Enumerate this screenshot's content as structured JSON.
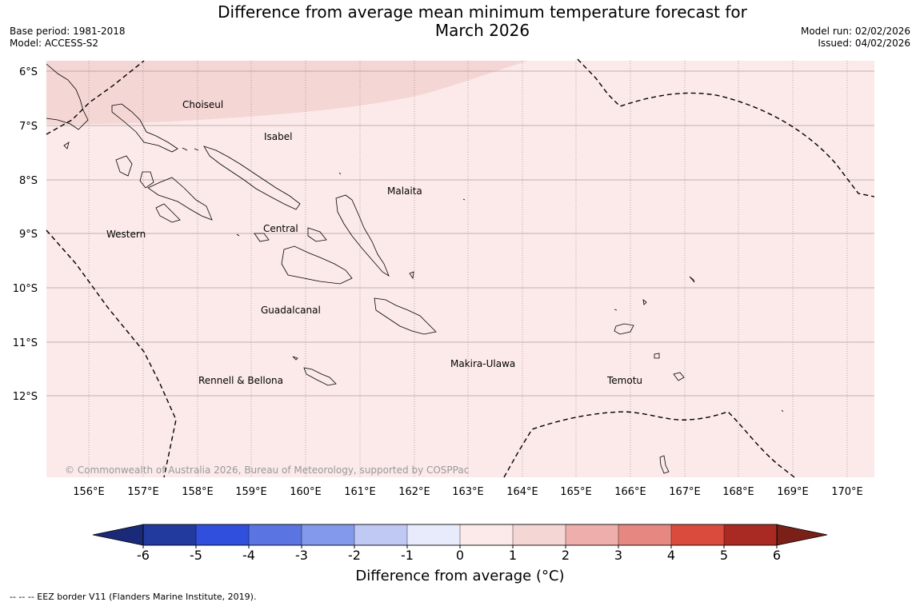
{
  "header": {
    "title_line1": "Difference from average mean minimum temperature forecast for",
    "title_line2": "March 2026",
    "base_period": "Base period: 1981-2018",
    "model": "Model: ACCESS-S2",
    "model_run": "Model run: 02/02/2026",
    "issued": "Issued: 04/02/2026"
  },
  "map": {
    "lat_labels": [
      "6°S",
      "7°S",
      "8°S",
      "9°S",
      "10°S",
      "11°S",
      "12°S"
    ],
    "lon_labels": [
      "156°E",
      "157°E",
      "158°E",
      "159°E",
      "160°E",
      "161°E",
      "162°E",
      "163°E",
      "164°E",
      "165°E",
      "166°E",
      "167°E",
      "168°E",
      "169°E",
      "170°E"
    ],
    "regions": [
      {
        "name": "Choiseul"
      },
      {
        "name": "Isabel"
      },
      {
        "name": "Malaita"
      },
      {
        "name": "Western"
      },
      {
        "name": "Central"
      },
      {
        "name": "Guadalcanal"
      },
      {
        "name": "Makira-Ulawa"
      },
      {
        "name": "Rennell & Bellona"
      },
      {
        "name": "Temotu"
      }
    ],
    "copyright": "© Commonwealth of Australia 2026, Bureau of Meteorology, supported by COSPPac",
    "background_color": "#fbeae9",
    "warm_area_color": "#f4d6d5"
  },
  "colorbar": {
    "ticks": [
      "-6",
      "-5",
      "-4",
      "-3",
      "-2",
      "-1",
      "0",
      "1",
      "2",
      "3",
      "4",
      "5",
      "6"
    ],
    "colors": [
      "#223a9e",
      "#2f4fdc",
      "#5a74e2",
      "#8399ec",
      "#c0c8f4",
      "#e8ebfc",
      "#fbeae9",
      "#f4d6d5",
      "#eeaeac",
      "#e68781",
      "#da4b3e",
      "#a82a23"
    ],
    "low_extend_color": "#1a2a78",
    "high_extend_color": "#7a2018",
    "label": "Difference from average (°C)"
  },
  "footer": {
    "legend": "--  --  -- EEZ border V11 (Flanders Marine Institute, 2019)."
  }
}
